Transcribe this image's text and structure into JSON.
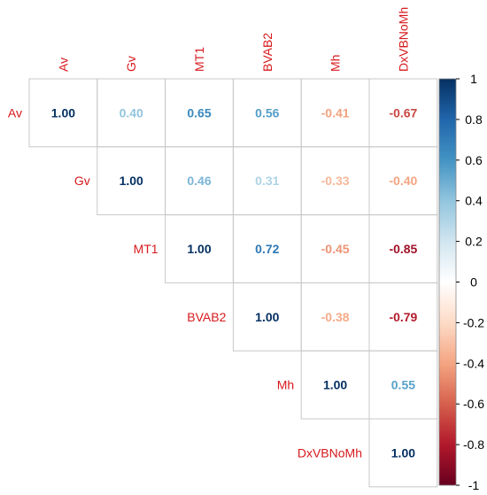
{
  "chart_data": {
    "type": "heatmap",
    "variant": "upper-triangle correlation matrix",
    "variables": [
      "Av",
      "Gv",
      "MT1",
      "BVAB2",
      "Mh",
      "DxVBNoMh"
    ],
    "matrix": [
      [
        1.0,
        0.4,
        0.65,
        0.56,
        -0.41,
        -0.67
      ],
      [
        null,
        1.0,
        0.46,
        0.31,
        -0.33,
        -0.4
      ],
      [
        null,
        null,
        1.0,
        0.72,
        -0.45,
        -0.85
      ],
      [
        null,
        null,
        null,
        1.0,
        -0.38,
        -0.79
      ],
      [
        null,
        null,
        null,
        null,
        1.0,
        0.55
      ],
      [
        null,
        null,
        null,
        null,
        null,
        1.0
      ]
    ],
    "value_labels": [
      [
        "1.00",
        "0.40",
        "0.65",
        "0.56",
        "-0.41",
        "-0.67"
      ],
      [
        null,
        "1.00",
        "0.46",
        "0.31",
        "-0.33",
        "-0.40"
      ],
      [
        null,
        null,
        "1.00",
        "0.72",
        "-0.45",
        "-0.85"
      ],
      [
        null,
        null,
        null,
        "1.00",
        "-0.38",
        "-0.79"
      ],
      [
        null,
        null,
        null,
        null,
        "1.00",
        "0.55"
      ],
      [
        null,
        null,
        null,
        null,
        null,
        "1.00"
      ]
    ],
    "colorbar": {
      "range": [
        -1,
        1
      ],
      "tick_values": [
        1,
        0.8,
        0.6,
        0.4,
        0.2,
        0,
        -0.2,
        -0.4,
        -0.6,
        -0.8,
        -1
      ],
      "tick_labels": [
        "1",
        "0.8",
        "0.6",
        "0.4",
        "0.2",
        "0",
        "-0.2",
        "-0.4",
        "-0.6",
        "-0.8",
        "-1"
      ],
      "palette": [
        "#67001f",
        "#b2182b",
        "#d6604d",
        "#f4a582",
        "#fddbc7",
        "#ffffff",
        "#d1e5f0",
        "#92c5de",
        "#4393c3",
        "#2166ac",
        "#053061"
      ],
      "placement": "right"
    },
    "label_color": "#d7191c",
    "grid": true
  }
}
